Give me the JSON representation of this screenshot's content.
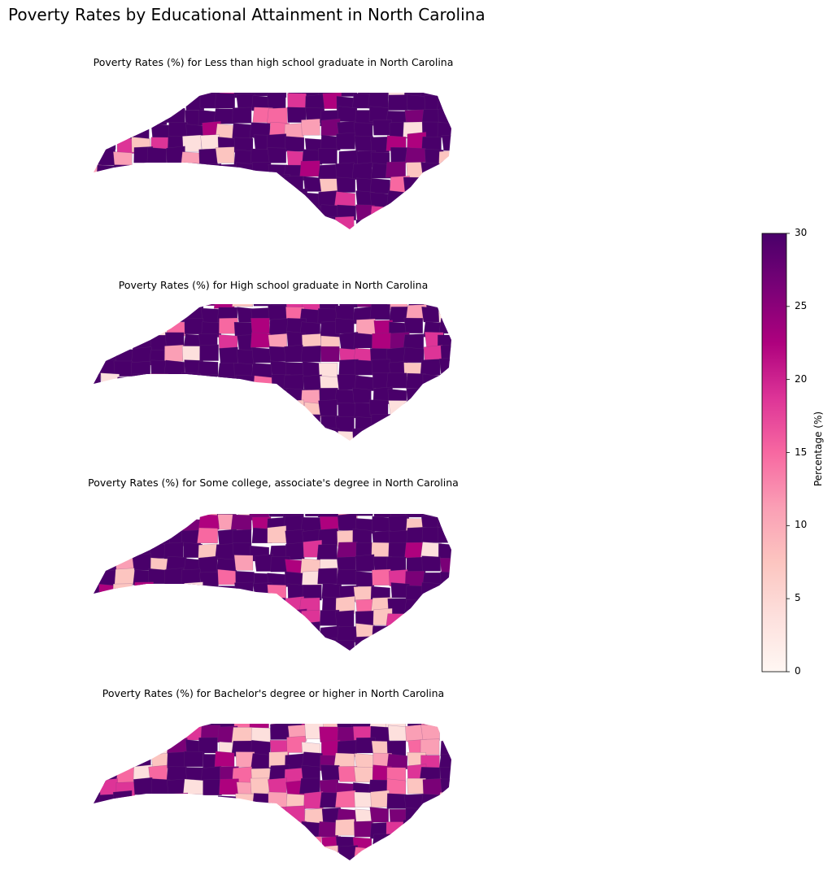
{
  "title": "Poverty Rates by Educational Attainment in North Carolina",
  "panels": [
    {
      "title": "Poverty Rates (%) for Less than high school graduate in North Carolina"
    },
    {
      "title": "Poverty Rates (%) for High school graduate in North Carolina"
    },
    {
      "title": "Poverty Rates (%) for Some college, associate's degree in North Carolina"
    },
    {
      "title": "Poverty Rates (%) for Bachelor's degree or higher in North Carolina"
    }
  ],
  "colorbar": {
    "label": "Percentage (%)",
    "min": 0,
    "max": 30,
    "ticks": [
      "0",
      "5",
      "10",
      "15",
      "20",
      "25",
      "30"
    ],
    "colormap": [
      "#fff7f3",
      "#fde0dd",
      "#fcc5c0",
      "#fa9fb5",
      "#f768a1",
      "#dd3497",
      "#ae017e",
      "#7a0177",
      "#49006a"
    ]
  }
}
